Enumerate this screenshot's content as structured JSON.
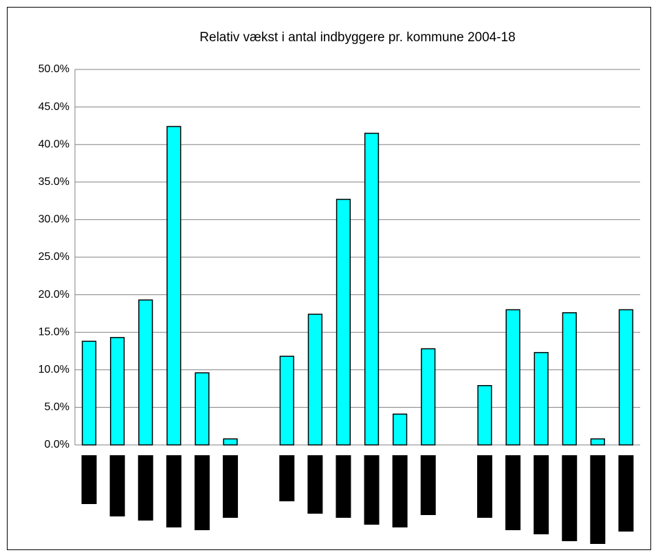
{
  "chart_data": {
    "type": "bar",
    "title": "Relativ vækst i antal indbyggere pr. kommune 2004-18",
    "categories": [
      null,
      null,
      null,
      null,
      null,
      null,
      null,
      null,
      null,
      null,
      null,
      null,
      null,
      null,
      null,
      null,
      null,
      null,
      null,
      null
    ],
    "values": [
      13.8,
      14.3,
      19.3,
      42.4,
      9.6,
      0.8,
      null,
      11.8,
      17.4,
      32.7,
      41.5,
      4.1,
      12.8,
      null,
      7.9,
      18.0,
      12.3,
      17.6,
      0.8,
      18.0
    ],
    "color": "#00ffff",
    "ylim": [
      0,
      50
    ],
    "yticks": [
      {
        "value": 0,
        "label": "0.0%"
      },
      {
        "value": 5,
        "label": "5.0%"
      },
      {
        "value": 10,
        "label": "10.0%"
      },
      {
        "value": 15,
        "label": "15.0%"
      },
      {
        "value": 20,
        "label": "20.0%"
      },
      {
        "value": 25,
        "label": "25.0%"
      },
      {
        "value": 30,
        "label": "30.0%"
      },
      {
        "value": 35,
        "label": "35.0%"
      },
      {
        "value": 40,
        "label": "40.0%"
      },
      {
        "value": 45,
        "label": "45.0%"
      },
      {
        "value": 50,
        "label": "50.0%"
      }
    ],
    "grid": true
  }
}
